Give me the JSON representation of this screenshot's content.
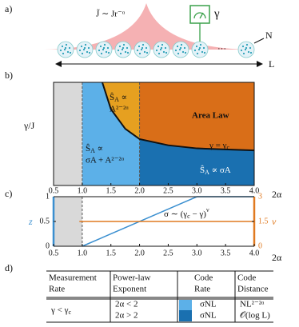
{
  "panel_a": {
    "label": "a)",
    "coupling": "J̃ ∼ Jr⁻ᵅ",
    "rate": "γ",
    "n_label": "N",
    "ellipsis": "···",
    "l_label": "L"
  },
  "panel_b": {
    "label": "b)",
    "ylabel": "γ/J",
    "xlabel": "2α",
    "xlim": [
      0.5,
      4
    ],
    "xticks": [
      0.5,
      {
        "value": 1,
        "label": "1.0"
      },
      1.5,
      {
        "value": 2,
        "label": "2.0"
      },
      2.5,
      {
        "value": 3,
        "label": "3.0"
      },
      3.5,
      {
        "value": 4,
        "label": "4.0"
      }
    ],
    "ylim": [
      0,
      1
    ],
    "regions": [
      {
        "from": 0.5,
        "to": 1,
        "below": "#d9d9d9",
        "above": "#d9d9d9"
      },
      {
        "from": 1,
        "to": 2,
        "below": "#5cb0e8",
        "above": "#e6a020"
      },
      {
        "from": 2,
        "to": 4,
        "below": "#1a70b0",
        "above": "#d96e18"
      }
    ],
    "critical_line": {
      "x": [
        1.35,
        1.5,
        1.75,
        2,
        2.5,
        3,
        3.5,
        4
      ],
      "y": [
        1,
        0.74,
        0.55,
        0.45,
        0.39,
        0.36,
        0.35,
        0.34
      ],
      "color": "#111111"
    },
    "texts": {
      "ordered_s": "Ŝ",
      "ordered_sub": "A",
      "ordered_prop": " ∝",
      "ordered_law": "A²⁻²ᵅ",
      "mixed_s": "Ŝ",
      "mixed_sub": "A",
      "mixed_prop": " ∝",
      "mixed_law": "σA + A²⁻²ᵅ",
      "area_law": "Area Law",
      "crit": "γ = γ",
      "crit_sub": "c",
      "vol_s": "Ŝ",
      "vol_sub": "A",
      "vol_law": " ∝ σA"
    }
  },
  "panel_c": {
    "label": "c)",
    "xlabel": "2α",
    "ylabel": "z",
    "y2label": "ν",
    "xlim": [
      0.5,
      4
    ],
    "xticks": [
      0.5,
      {
        "value": 1,
        "label": "1.0"
      },
      1.5,
      {
        "value": 2,
        "label": "2.0"
      },
      2.5,
      {
        "value": 3,
        "label": "3.0"
      },
      3.5,
      {
        "value": 4,
        "label": "4.0"
      }
    ],
    "ylim": [
      0,
      1
    ],
    "yticks": [
      0,
      0.5,
      1
    ],
    "y2lim": [
      0,
      3
    ],
    "y2ticks": [
      0,
      1.5,
      3
    ],
    "shade": {
      "from": 0.5,
      "to": 1,
      "color": "#d9d9d9"
    },
    "series": [
      {
        "color": "#3a8fd0",
        "x": [
          1,
          3,
          4
        ],
        "values": [
          0,
          1,
          1
        ]
      },
      {
        "color": "#e07a20",
        "axis": "y2",
        "x": [
          0.95,
          4
        ],
        "values": [
          1.5,
          1.5
        ]
      }
    ],
    "annotation": {
      "a": "σ ∼ (γ",
      "b": "c",
      "c": " − γ)",
      "d": "ν"
    }
  },
  "panel_d": {
    "label": "d)",
    "header": [
      [
        "Measurement",
        "Rate"
      ],
      [
        "Power-law",
        "Exponent"
      ],
      [
        "Code",
        "Rate"
      ],
      [
        "Code",
        "Distance"
      ]
    ],
    "rate": [
      "γ < γ",
      "c"
    ],
    "rows": [
      {
        "exponent": "2α < 2",
        "color": "#5cb0e8",
        "code_rate": "σNL",
        "distance": "NL²⁻²ᵅ"
      },
      {
        "exponent": "2α > 2",
        "color": "#1a70b0",
        "code_rate": "σNL",
        "distance": "𝒪(log L)"
      }
    ]
  }
}
